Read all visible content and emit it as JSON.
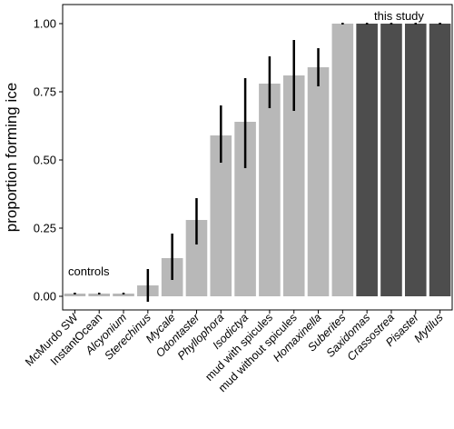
{
  "chart_data": {
    "type": "bar",
    "ylabel": "proportion forming ice",
    "xlabel": "",
    "ylim": [
      -0.05,
      1.07
    ],
    "yticks": [
      0.0,
      0.25,
      0.5,
      0.75,
      1.0
    ],
    "ytick_labels": [
      "0.00",
      "0.25",
      "0.50",
      "0.75",
      "1.00"
    ],
    "grid": false,
    "categories": [
      {
        "label": "McMurdo SW",
        "italic": false
      },
      {
        "label": "InstantOcean",
        "italic": false
      },
      {
        "label": "Alcyonium",
        "italic": true
      },
      {
        "label": "Sterechinus",
        "italic": true
      },
      {
        "label": "Mycale",
        "italic": true
      },
      {
        "label": "Odontaster",
        "italic": true
      },
      {
        "label": "Phyllophora",
        "italic": true
      },
      {
        "label": "Isodictya",
        "italic": true
      },
      {
        "label": "mud with spicules",
        "italic": false
      },
      {
        "label": "mud without spicules",
        "italic": false
      },
      {
        "label": "Homaxinella",
        "italic": true
      },
      {
        "label": "Suberites",
        "italic": true
      },
      {
        "label": "Saxidomas",
        "italic": true
      },
      {
        "label": "Crassostrea",
        "italic": true
      },
      {
        "label": "Pisaster",
        "italic": true
      },
      {
        "label": "Mytilus",
        "italic": true
      }
    ],
    "values": [
      0.01,
      0.01,
      0.01,
      0.04,
      0.14,
      0.28,
      0.59,
      0.64,
      0.78,
      0.81,
      0.84,
      1.0,
      1.0,
      1.0,
      1.0,
      1.0
    ],
    "errors": [
      [
        0.01,
        0.01
      ],
      [
        0.01,
        0.01
      ],
      [
        0.01,
        0.01
      ],
      [
        -0.02,
        0.1
      ],
      [
        0.06,
        0.23
      ],
      [
        0.19,
        0.36
      ],
      [
        0.49,
        0.7
      ],
      [
        0.47,
        0.8
      ],
      [
        0.69,
        0.88
      ],
      [
        0.68,
        0.94
      ],
      [
        0.77,
        0.91
      ],
      [
        1.0,
        1.0
      ],
      [
        1.0,
        1.0
      ],
      [
        1.0,
        1.0
      ],
      [
        1.0,
        1.0
      ],
      [
        1.0,
        1.0
      ]
    ],
    "groups": [
      "controls",
      "controls",
      "controls",
      "other",
      "other",
      "other",
      "other",
      "other",
      "other",
      "other",
      "other",
      "other",
      "this study",
      "this study",
      "this study",
      "this study"
    ],
    "colors": {
      "controls": "#b8b8b8",
      "other": "#b8b8b8",
      "this study": "#4d4d4d"
    },
    "annotations": [
      {
        "text": "controls"
      },
      {
        "text": "this study"
      }
    ]
  }
}
